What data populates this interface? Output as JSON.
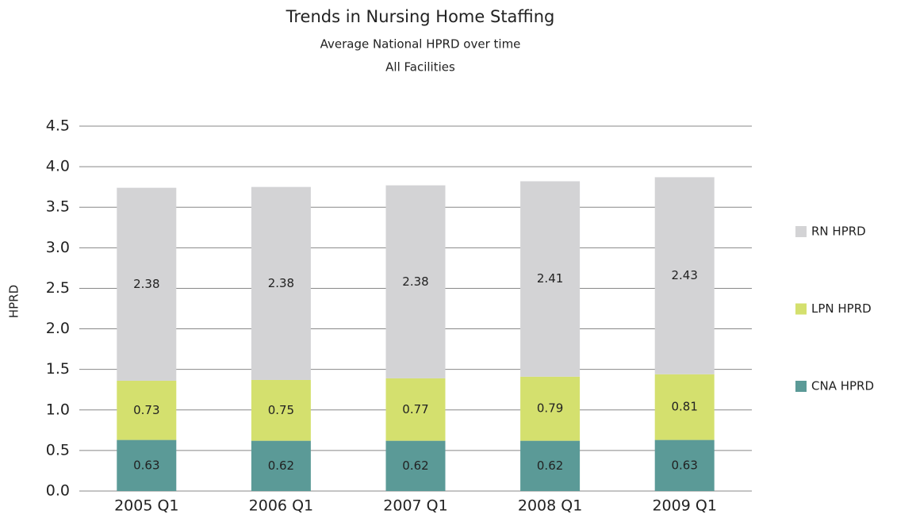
{
  "chart_data": {
    "type": "stacked_bar",
    "title": "Trends in Nursing Home Staffing",
    "subtitle": "Average National HPRD over time",
    "subtitle2": "All Facilities",
    "y_label": "HPRD",
    "categories": [
      "2005 Q1",
      "2006 Q1",
      "2007 Q1",
      "2008 Q1",
      "2009 Q1"
    ],
    "series": [
      {
        "name": "CNA HPRD",
        "color": "#5b9a97",
        "values": [
          0.63,
          0.62,
          0.62,
          0.62,
          0.63
        ]
      },
      {
        "name": "LPN HPRD",
        "color": "#d4e06e",
        "values": [
          0.73,
          0.75,
          0.77,
          0.79,
          0.81
        ]
      },
      {
        "name": "RN HPRD",
        "color": "#d3d3d5",
        "values": [
          2.38,
          2.38,
          2.38,
          2.41,
          2.43
        ]
      }
    ],
    "ylim": [
      0,
      4.5
    ],
    "yticks": [
      {
        "value": 0,
        "label": "0.0"
      },
      0.5,
      {
        "value": 1,
        "label": "1.0"
      },
      1.5,
      {
        "value": 2,
        "label": "2.0"
      },
      2.5,
      {
        "value": 3,
        "label": "3.0"
      },
      3.5,
      {
        "value": 4,
        "label": "4.0"
      },
      4.5
    ],
    "grid": true,
    "legend": "right"
  }
}
